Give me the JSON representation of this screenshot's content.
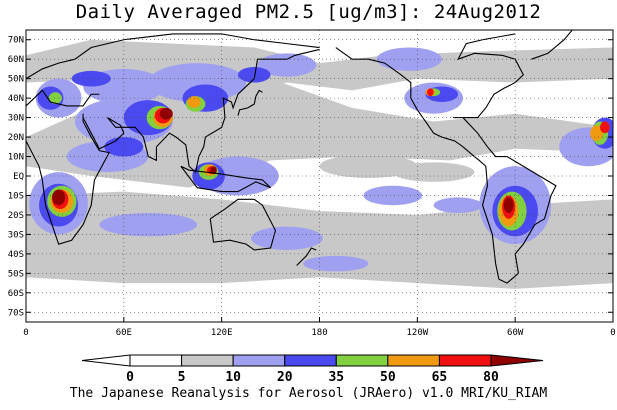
{
  "title": "Daily Averaged PM2.5 [ug/m3]: 24Aug2012",
  "footer": "The Japanese Reanalysis for Aerosol (JRAero) v1.0 MRI/KU_RIAM",
  "map": {
    "projection": "equirectangular",
    "lon_range": [
      0,
      360
    ],
    "lat_range": [
      -75,
      75
    ],
    "gridlines": "dotted",
    "lat_ticks": [
      {
        "lat": 70,
        "label": "70N"
      },
      {
        "lat": 60,
        "label": "60N"
      },
      {
        "lat": 50,
        "label": "50N"
      },
      {
        "lat": 40,
        "label": "40N"
      },
      {
        "lat": 30,
        "label": "30N"
      },
      {
        "lat": 20,
        "label": "20N"
      },
      {
        "lat": 10,
        "label": "10N"
      },
      {
        "lat": 0,
        "label": "EQ"
      },
      {
        "lat": -10,
        "label": "10S"
      },
      {
        "lat": -20,
        "label": "20S"
      },
      {
        "lat": -30,
        "label": "30S"
      },
      {
        "lat": -40,
        "label": "40S"
      },
      {
        "lat": -50,
        "label": "50S"
      },
      {
        "lat": -60,
        "label": "60S"
      },
      {
        "lat": -70,
        "label": "70S"
      }
    ],
    "lon_ticks": [
      {
        "lon": 0,
        "label": "0"
      },
      {
        "lon": 60,
        "label": "60E"
      },
      {
        "lon": 120,
        "label": "120E"
      },
      {
        "lon": 180,
        "label": "180"
      },
      {
        "lon": 240,
        "label": "120W"
      },
      {
        "lon": 300,
        "label": "60W"
      },
      {
        "lon": 360,
        "label": "0"
      }
    ]
  },
  "colorbar": {
    "labels": [
      "0",
      "5",
      "10",
      "20",
      "35",
      "50",
      "65",
      "80"
    ],
    "colors": [
      "#ffffff",
      "#c8c8c8",
      "#a0a0f0",
      "#4a4af0",
      "#80d040",
      "#f09a10",
      "#f01010",
      "#900000"
    ]
  },
  "concentration_levels": {
    "light_gray": "#c8c8c8",
    "light_blue": "#a0a0f0",
    "blue": "#4a4af0",
    "green": "#80d040",
    "orange": "#f09a10",
    "red": "#f01010",
    "dark_red": "#900000"
  }
}
